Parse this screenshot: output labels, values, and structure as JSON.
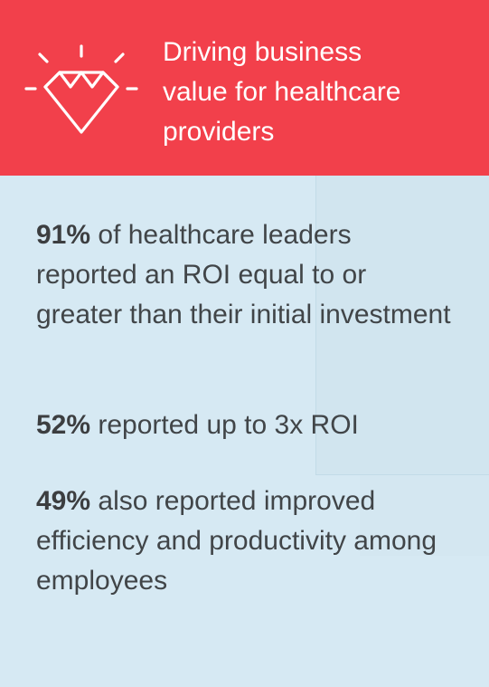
{
  "header": {
    "title": "Driving business\nvalue for healthcare\nproviders",
    "icon": "diamond-icon",
    "background_color": "#f2404b"
  },
  "stats": [
    {
      "percent": "91%",
      "text": " of healthcare leaders reported an ROI equal to or greater than their initial investment"
    },
    {
      "percent": "52%",
      "text": " reported up to 3x ROI"
    },
    {
      "percent": "49%",
      "text": " also reported improved efficiency and productivity among employees"
    }
  ],
  "body_background_color": "#d6e9f3"
}
